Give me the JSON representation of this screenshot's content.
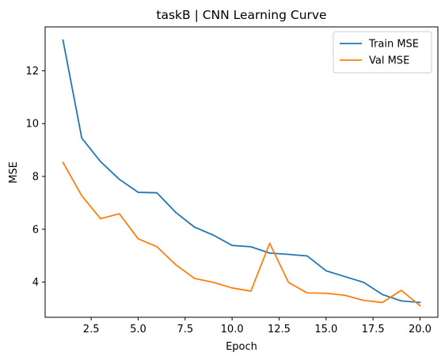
{
  "chart_data": {
    "type": "line",
    "title": "taskB | CNN Learning Curve",
    "xlabel": "Epoch",
    "ylabel": "MSE",
    "xlim": [
      0.05,
      20.95
    ],
    "ylim": [
      2.67,
      13.66
    ],
    "xticks": [
      2.5,
      5.0,
      7.5,
      10.0,
      12.5,
      15.0,
      17.5,
      20.0
    ],
    "xtick_labels": [
      "2.5",
      "5.0",
      "7.5",
      "10.0",
      "12.5",
      "15.0",
      "17.5",
      "20.0"
    ],
    "yticks": [
      4,
      6,
      8,
      10,
      12
    ],
    "ytick_labels": [
      "4",
      "6",
      "8",
      "10",
      "12"
    ],
    "grid": false,
    "legend_position": "top-right",
    "x": [
      1,
      2,
      3,
      4,
      5,
      6,
      7,
      8,
      9,
      10,
      11,
      12,
      13,
      14,
      15,
      16,
      17,
      18,
      19,
      20
    ],
    "series": [
      {
        "name": "Train MSE",
        "color": "#1f77b4",
        "values": [
          13.16,
          9.45,
          8.56,
          7.89,
          7.4,
          7.38,
          6.64,
          6.08,
          5.78,
          5.39,
          5.34,
          5.1,
          5.05,
          4.99,
          4.43,
          4.21,
          3.99,
          3.53,
          3.29,
          3.23
        ]
      },
      {
        "name": "Val MSE",
        "color": "#ff7f0e",
        "values": [
          8.53,
          7.27,
          6.4,
          6.59,
          5.64,
          5.34,
          4.66,
          4.14,
          3.99,
          3.78,
          3.66,
          5.47,
          3.99,
          3.59,
          3.58,
          3.5,
          3.31,
          3.23,
          3.69,
          3.11
        ]
      }
    ]
  }
}
